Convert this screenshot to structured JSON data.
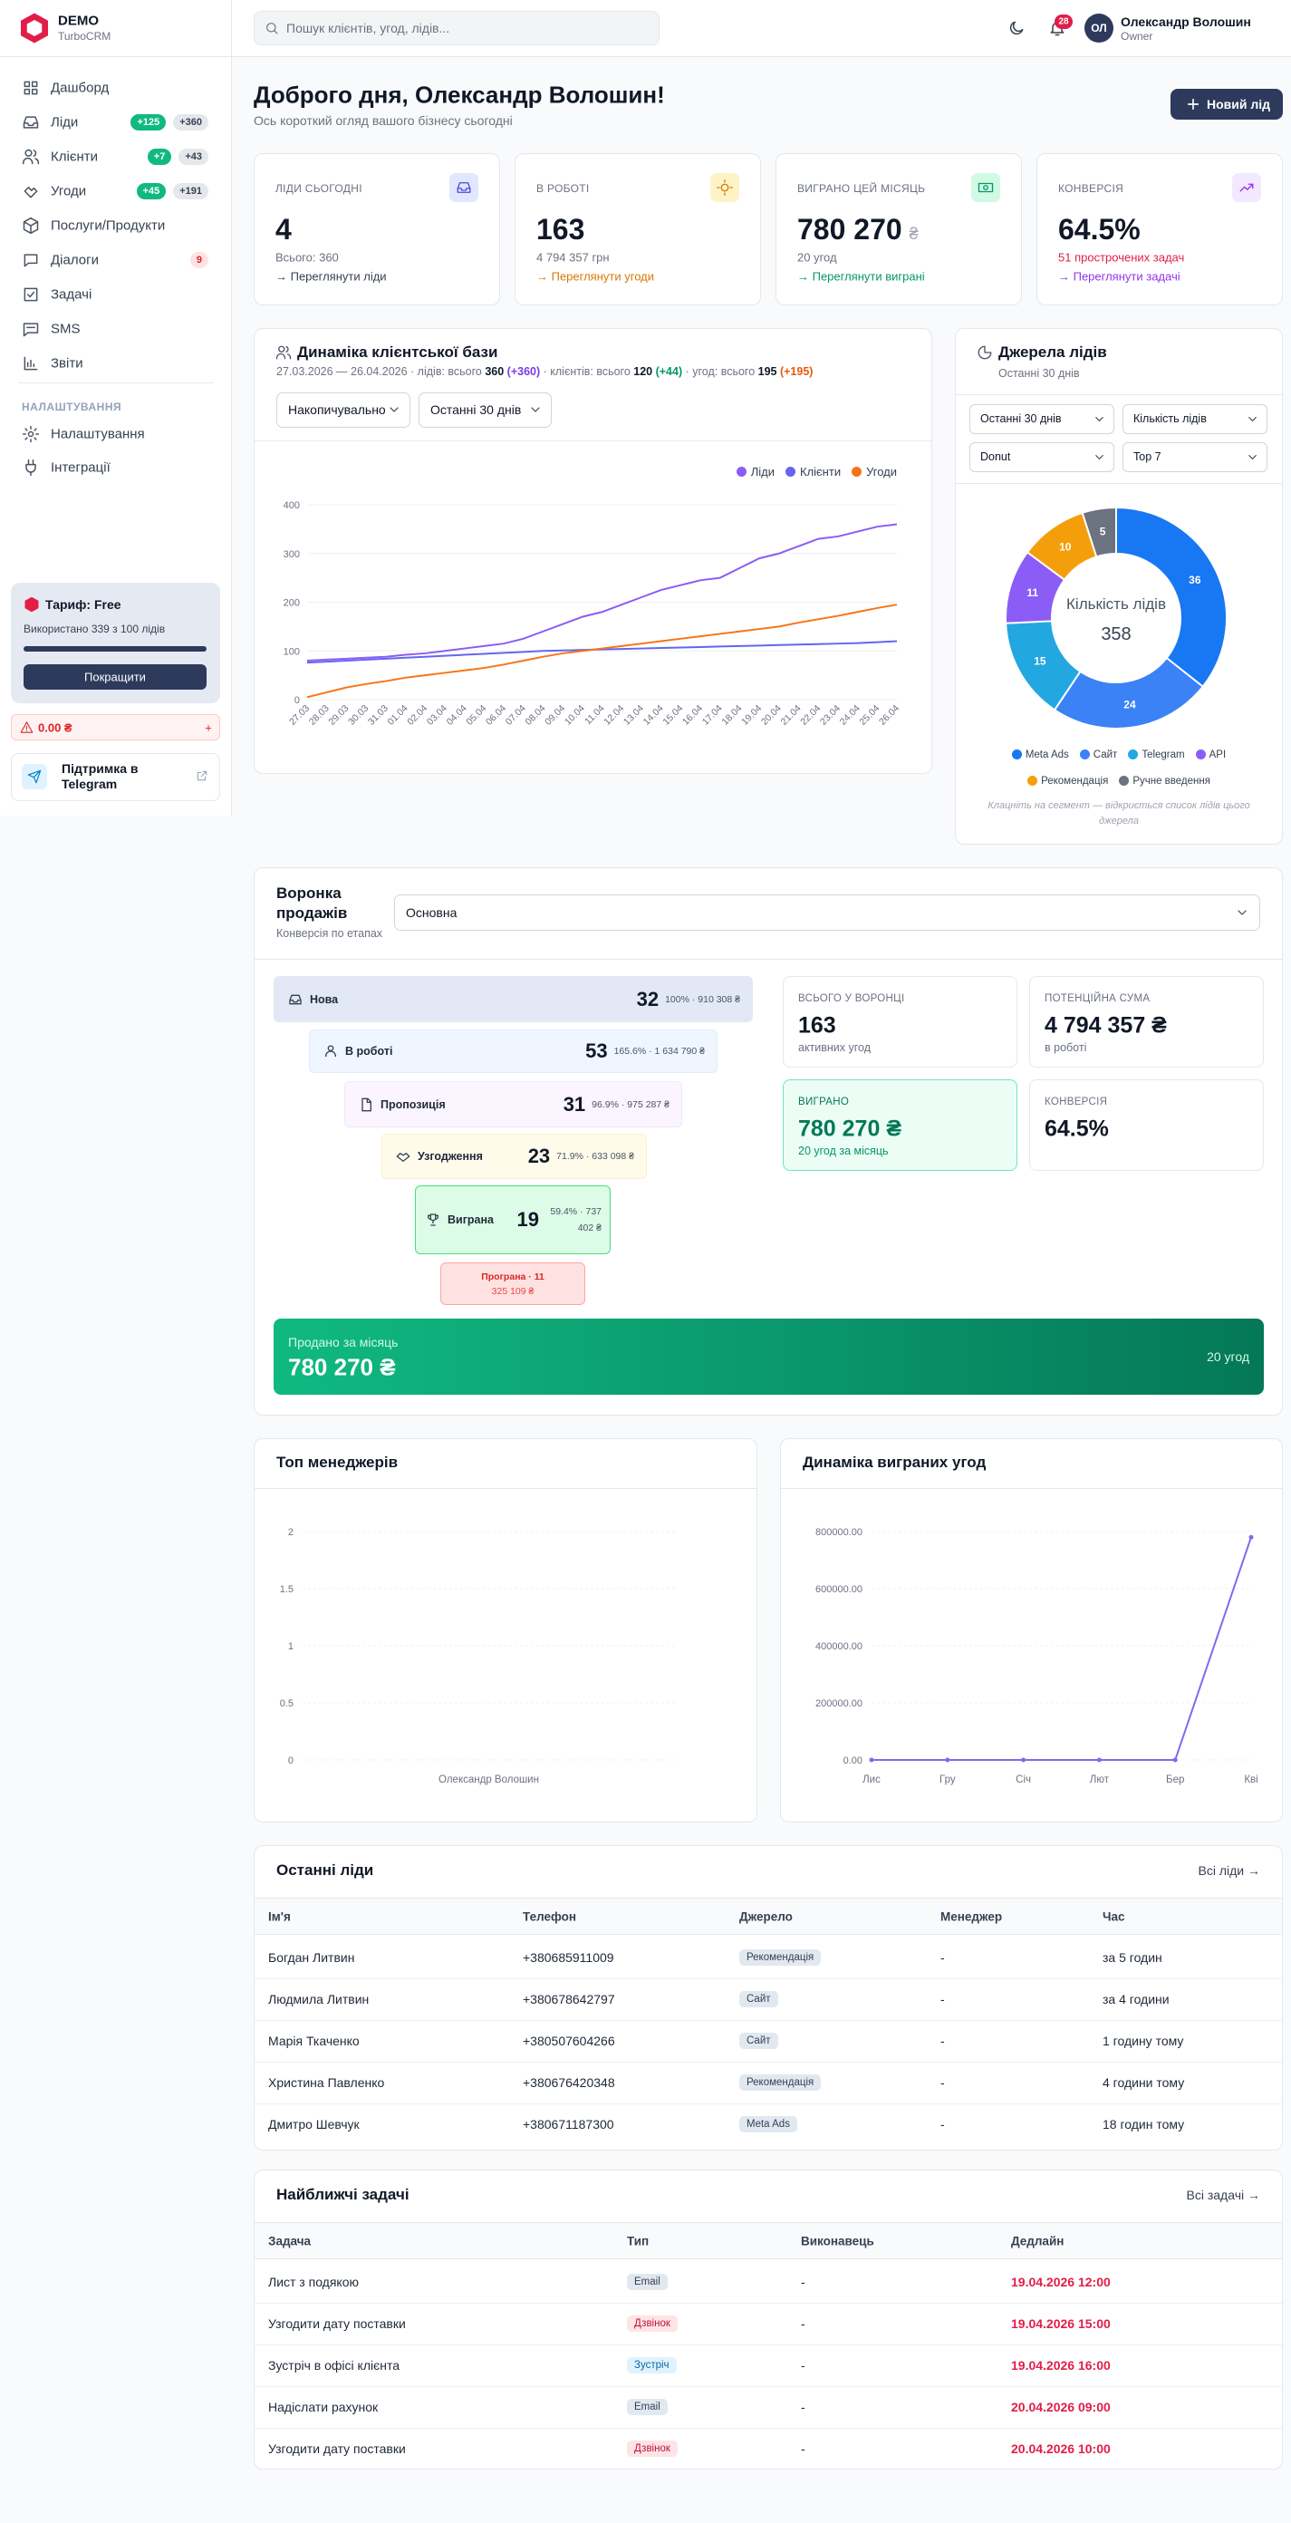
{
  "sidebar": {
    "brand": "DEMO",
    "product": "TurboCRM",
    "nav": [
      {
        "label": "Дашборд"
      },
      {
        "label": "Ліди",
        "badges": [
          "+125",
          "+360"
        ]
      },
      {
        "label": "Клієнти",
        "badges": [
          "+7",
          "+43"
        ]
      },
      {
        "label": "Угоди",
        "badges": [
          "+45",
          "+191"
        ]
      },
      {
        "label": "Послуги/Продукти"
      },
      {
        "label": "Діалоги",
        "badges": [
          "9"
        ]
      },
      {
        "label": "Задачі"
      },
      {
        "label": "SMS"
      },
      {
        "label": "Звіти"
      }
    ],
    "settings_heading": "НАЛАШТУВАННЯ",
    "settings_nav": [
      {
        "label": "Налаштування"
      },
      {
        "label": "Інтеграції"
      }
    ],
    "plan": {
      "title": "Тариф: Free",
      "usage": "Використано 339 з 100 лідів",
      "button": "Покращити"
    },
    "balance": {
      "amount": "0.00 ₴",
      "action": "+"
    },
    "support": "Підтримка в Telegram"
  },
  "header": {
    "search_placeholder": "Пошук клієнтів, угод, лідів...",
    "notifications": "28",
    "avatar": "ОЛ",
    "user_name": "Олександр Волошин",
    "user_role": "Owner"
  },
  "greeting": {
    "title": "Доброго дня, Олександр Волошин!",
    "subtitle": "Ось короткий огляд вашого бізнесу сьогодні",
    "button": "Новий лід"
  },
  "kpis": [
    {
      "label": "ЛІДИ СЬОГОДНІ",
      "value": "4",
      "note": "Всього: 360",
      "link": "→ Переглянути ліди"
    },
    {
      "label": "В РОБОТІ",
      "value": "163",
      "note": "4 794 357 грн",
      "link": "→ Переглянути угоди"
    },
    {
      "label": "ВИГРАНО ЦЕЙ МІСЯЦЬ",
      "value": "780 270",
      "unit": "₴",
      "note": "20 угод",
      "link": "→ Переглянути виграні"
    },
    {
      "label": "КОНВЕРСІЯ",
      "value": "64.5%",
      "note": "51 прострочених задач",
      "link": "→ Переглянути задачі"
    }
  ],
  "growth_panel": {
    "subtitle_parts": [
      "27.03.2026 — 26.04.2026 · лідів: всього ",
      "360",
      " (+360)",
      " · клієнтів: всього ",
      "120",
      " (+44)",
      " · угод: всього ",
      "195",
      " (+195)"
    ],
    "mode": "Накопичувально",
    "period": "Останні 30 днів"
  },
  "sources_panel": {
    "period": "Останні 30 днів",
    "metric": "Кількість лідів",
    "view": "Donut",
    "limit": "Top 7"
  },
  "chart_data": [
    {
      "type": "line",
      "title": "Динаміка клієнтської бази",
      "categories": [
        "27.03",
        "28.03",
        "29.03",
        "30.03",
        "31.03",
        "01.04",
        "02.04",
        "03.04",
        "04.04",
        "05.04",
        "06.04",
        "07.04",
        "08.04",
        "09.04",
        "10.04",
        "11.04",
        "12.04",
        "13.04",
        "14.04",
        "15.04",
        "16.04",
        "17.04",
        "18.04",
        "19.04",
        "20.04",
        "21.04",
        "22.04",
        "23.04",
        "24.04",
        "25.04",
        "26.04"
      ],
      "series": [
        {
          "name": "Ліди",
          "color": "#8b5cf6",
          "values": [
            80,
            82,
            84,
            86,
            88,
            92,
            95,
            100,
            105,
            110,
            115,
            125,
            140,
            155,
            170,
            180,
            195,
            210,
            225,
            235,
            245,
            250,
            270,
            290,
            300,
            315,
            330,
            335,
            345,
            355,
            360
          ]
        },
        {
          "name": "Клієнти",
          "color": "#6366f1",
          "values": [
            76,
            78,
            80,
            82,
            84,
            86,
            88,
            90,
            92,
            94,
            96,
            98,
            100,
            101,
            102,
            103,
            104,
            105,
            106,
            107,
            108,
            109,
            110,
            111,
            112,
            113,
            114,
            115,
            116,
            118,
            120
          ]
        },
        {
          "name": "Угоди",
          "color": "#f97316",
          "values": [
            5,
            15,
            25,
            32,
            38,
            45,
            50,
            55,
            60,
            65,
            72,
            80,
            88,
            95,
            100,
            105,
            110,
            115,
            120,
            125,
            130,
            135,
            140,
            145,
            150,
            158,
            165,
            172,
            180,
            188,
            195
          ]
        }
      ],
      "ylim": [
        0,
        400
      ],
      "yticks": [
        0,
        100,
        200,
        300,
        400
      ],
      "grid": true,
      "legend": "top-right"
    },
    {
      "type": "donut",
      "title": "Джерела лідів",
      "subtitle": "Останні 30 днів",
      "categories": [
        "Meta Ads",
        "Сайт",
        "Telegram",
        "API",
        "Рекомендація",
        "Ручне введення"
      ],
      "values": [
        36,
        24,
        15,
        11,
        10,
        5
      ],
      "colors": [
        "#1877f2",
        "#3b82f6",
        "#22a7e0",
        "#8b5cf6",
        "#f59e0b",
        "#6b7280"
      ],
      "center_label": "Кількість лідів",
      "center_value": 358,
      "note": "Клацніть на сегмент — відкриється список лідів цього джерела"
    },
    {
      "type": "bar",
      "title": "Топ менеджерів",
      "categories": [
        "Олександр Волошин"
      ],
      "values": [
        0
      ],
      "color": "#6366f1",
      "ylim": [
        0,
        2
      ],
      "yticks": [
        0,
        0.5,
        1,
        1.5,
        2
      ],
      "grid": true
    },
    {
      "type": "line",
      "title": "Динаміка виграних угод",
      "categories": [
        "Лис",
        "Гру",
        "Січ",
        "Лют",
        "Бер",
        "Кві"
      ],
      "values": [
        0,
        0,
        0,
        0,
        0,
        780270
      ],
      "color": "#7c6cf0",
      "ylim": [
        0,
        800000
      ],
      "yticks": [
        {
          "value": 0,
          "label": "0.00"
        },
        {
          "value": 200000,
          "label": "200000.00"
        },
        {
          "value": 400000,
          "label": "400000.00"
        },
        {
          "value": 600000,
          "label": "600000.00"
        },
        {
          "value": 800000,
          "label": "800000.00"
        }
      ],
      "grid": true
    }
  ],
  "funnel": {
    "title": "Воронка продажів",
    "subtitle": "Конверсія по етапах",
    "select": "Основна",
    "stages": [
      {
        "name": "Нова",
        "count": "32",
        "detail": "100% · 910 308 ₴"
      },
      {
        "name": "В роботі",
        "count": "53",
        "detail": "165.6% · 1 634 790 ₴"
      },
      {
        "name": "Пропозиція",
        "count": "31",
        "detail": "96.9% · 975 287 ₴"
      },
      {
        "name": "Узгодження",
        "count": "23",
        "detail": "71.9% · 633 098 ₴"
      },
      {
        "name": "Виграна",
        "count": "19",
        "detail": "59.4% · 737 402 ₴"
      }
    ],
    "lost": {
      "label": "Програна · 11",
      "amount": "325 109 ₴"
    },
    "stats": [
      {
        "label": "ВСЬОГО У ВОРОНЦІ",
        "value": "163",
        "note": "активних угод"
      },
      {
        "label": "ПОТЕНЦІЙНА СУМА",
        "value": "4 794 357 ₴",
        "note": "в роботі"
      },
      {
        "label": "ВИГРАНО",
        "value": "780 270 ₴",
        "note": "20 угод за місяць"
      },
      {
        "label": "КОНВЕРСІЯ",
        "value": "64.5%"
      }
    ],
    "banner": {
      "label": "Продано за місяць",
      "value": "780 270 ₴",
      "note": "20 угод"
    }
  },
  "leads_table": {
    "title": "Останні ліди",
    "link": "Всі ліди →",
    "columns": [
      "Ім'я",
      "Телефон",
      "Джерело",
      "Менеджер",
      "Час"
    ],
    "rows": [
      [
        "Богдан Литвин",
        "+380685911009",
        "Рекомендація",
        "-",
        "за 5 годин"
      ],
      [
        "Людмила Литвин",
        "+380678642797",
        "Сайт",
        "-",
        "за 4 години"
      ],
      [
        "Марія Ткаченко",
        "+380507604266",
        "Сайт",
        "-",
        "1 годину тому"
      ],
      [
        "Христина Павленко",
        "+380676420348",
        "Рекомендація",
        "-",
        "4 години тому"
      ],
      [
        "Дмитро Шевчук",
        "+380671187300",
        "Meta Ads",
        "-",
        "18 годин тому"
      ]
    ]
  },
  "tasks_table": {
    "title": "Найближчі задачі",
    "link": "Всі задачі →",
    "columns": [
      "Задача",
      "Тип",
      "Виконавець",
      "Дедлайн"
    ],
    "rows": [
      [
        "Лист з подякою",
        "Email",
        "-",
        "19.04.2026 12:00"
      ],
      [
        "Узгодити дату поставки",
        "Дзвінок",
        "-",
        "19.04.2026 15:00"
      ],
      [
        "Зустріч в офісі клієнта",
        "Зустріч",
        "-",
        "19.04.2026 16:00"
      ],
      [
        "Надіслати рахунок",
        "Email",
        "-",
        "20.04.2026 09:00"
      ],
      [
        "Узгодити дату поставки",
        "Дзвінок",
        "-",
        "20.04.2026 10:00"
      ]
    ]
  }
}
